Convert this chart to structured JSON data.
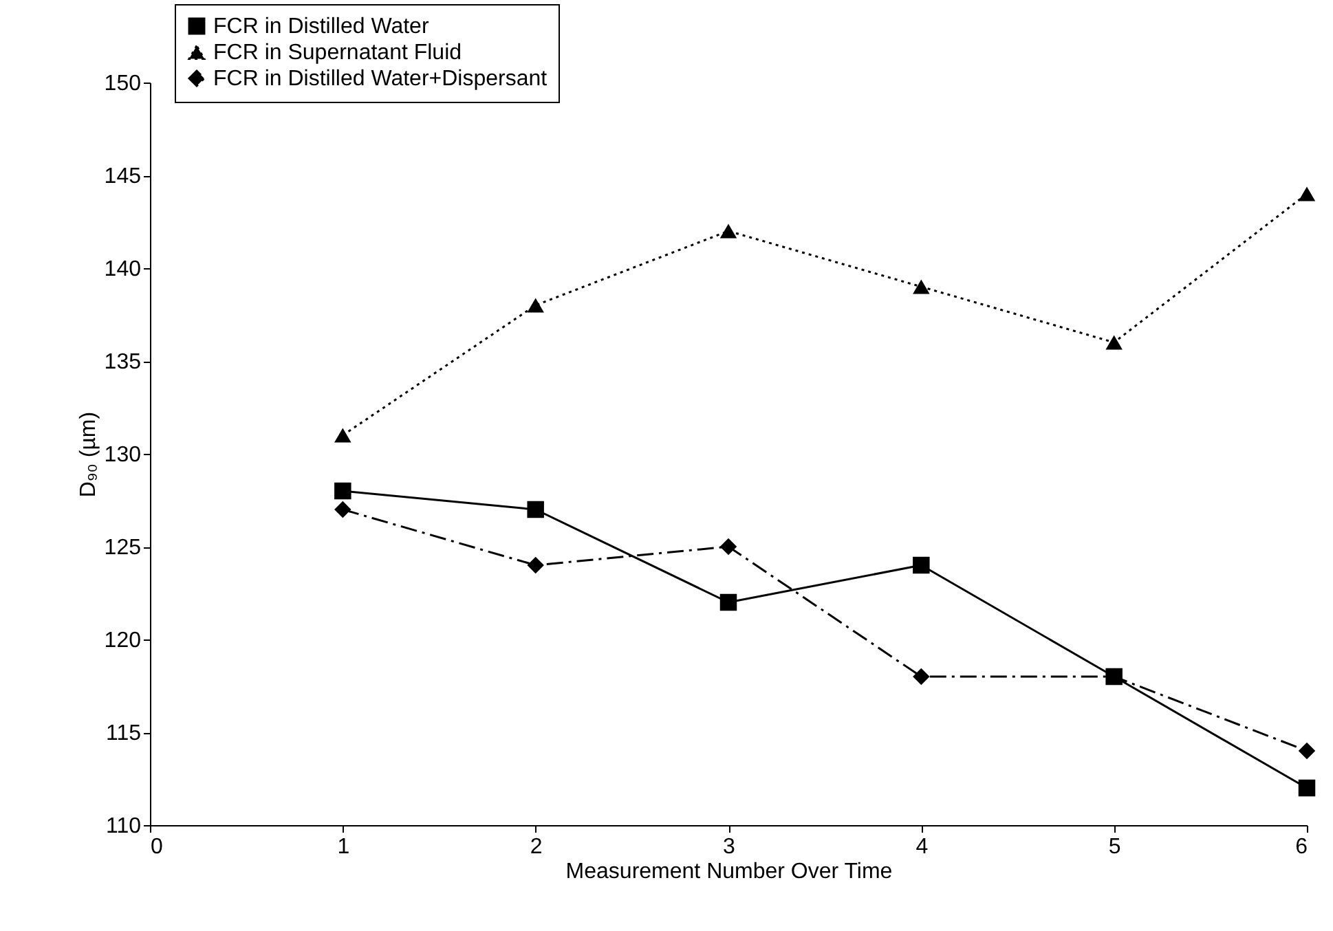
{
  "chart_data": {
    "type": "line",
    "xlabel": "Measurement Number Over Time",
    "ylabel": "D₉₀ (µm)",
    "x": [
      1,
      2,
      3,
      4,
      5,
      6
    ],
    "xlim": [
      0,
      6
    ],
    "xticks": [
      0,
      1,
      2,
      3,
      4,
      5,
      6
    ],
    "ylim": [
      110,
      150
    ],
    "yticks": [
      110,
      115,
      120,
      125,
      130,
      135,
      140,
      145,
      150
    ],
    "legend": "top left",
    "series": [
      {
        "name": "FCR in Distilled Water",
        "color": "#000000",
        "marker": "square",
        "line_style": "solid",
        "values": [
          128,
          127,
          122,
          124,
          118,
          112
        ]
      },
      {
        "name": "FCR in Supernatant Fluid",
        "color": "#000000",
        "marker": "triangle",
        "line_style": "dotted",
        "values": [
          131,
          138,
          142,
          139,
          136,
          144
        ]
      },
      {
        "name": "FCR in Distilled Water+Dispersant",
        "color": "#000000",
        "marker": "diamond",
        "line_style": "dashed",
        "values": [
          127,
          124,
          125,
          118,
          118,
          114
        ]
      }
    ]
  }
}
